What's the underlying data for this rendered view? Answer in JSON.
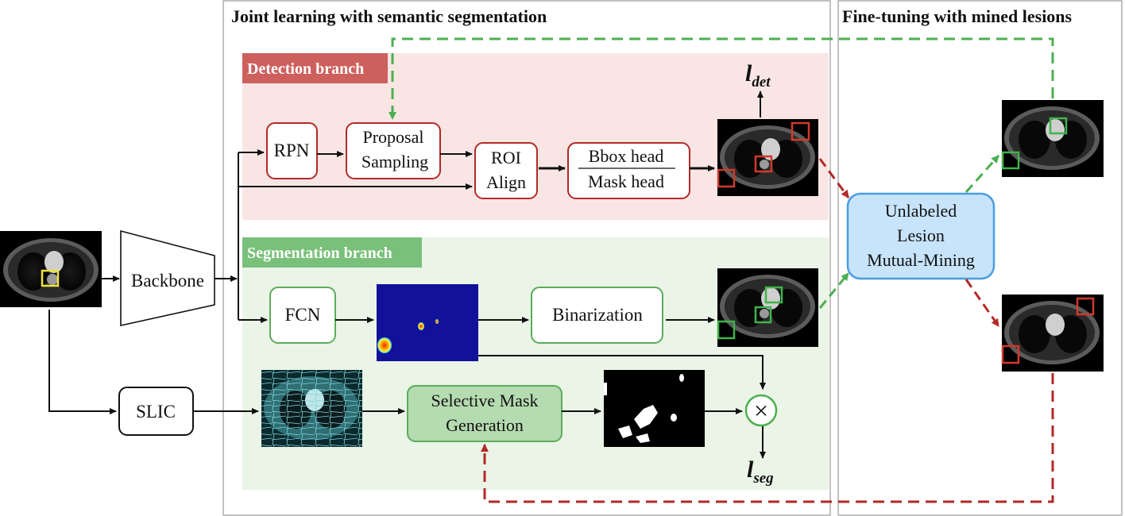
{
  "panels": {
    "joint_title": "Joint learning with semantic segmentation",
    "finetune_title": "Fine-tuning with mined lesions"
  },
  "branches": {
    "detection": "Detection branch",
    "segmentation": "Segmentation branch"
  },
  "nodes": {
    "backbone": "Backbone",
    "rpn": "RPN",
    "proposal_line1": "Proposal",
    "proposal_line2": "Sampling",
    "roi_line1": "ROI",
    "roi_line2": "Align",
    "bbox_head": "Bbox head",
    "mask_head": "Mask head",
    "fcn": "FCN",
    "binarization": "Binarization",
    "slic": "SLIC",
    "selective_line1": "Selective Mask",
    "selective_line2": "Generation",
    "mining_line1": "Unlabeled",
    "mining_line2": "Lesion",
    "mining_line3": "Mutual-Mining",
    "multiply_symbol": "×"
  },
  "losses": {
    "det_main": "l",
    "det_sub": "det",
    "seg_main": "l",
    "seg_sub": "seg"
  },
  "colors": {
    "detection_red": "#b22a27",
    "detection_bg": "#f9e6e4",
    "detection_tag": "#cd605d",
    "segmentation_green": "#5cac5b",
    "segmentation_bg": "#eaf4e7",
    "segmentation_tag": "#79c07a",
    "mining_fill": "#c7e4fb",
    "mining_border": "#4a9ee0",
    "arrow_green": "#4caf50",
    "arrow_red": "#b22a27"
  },
  "icons": {
    "ct_scan": "ct-scan-thumbnail",
    "heatmap": "fcn-heatmap",
    "superpixel": "slic-superpixel-image",
    "binary_mask": "binary-mask"
  }
}
